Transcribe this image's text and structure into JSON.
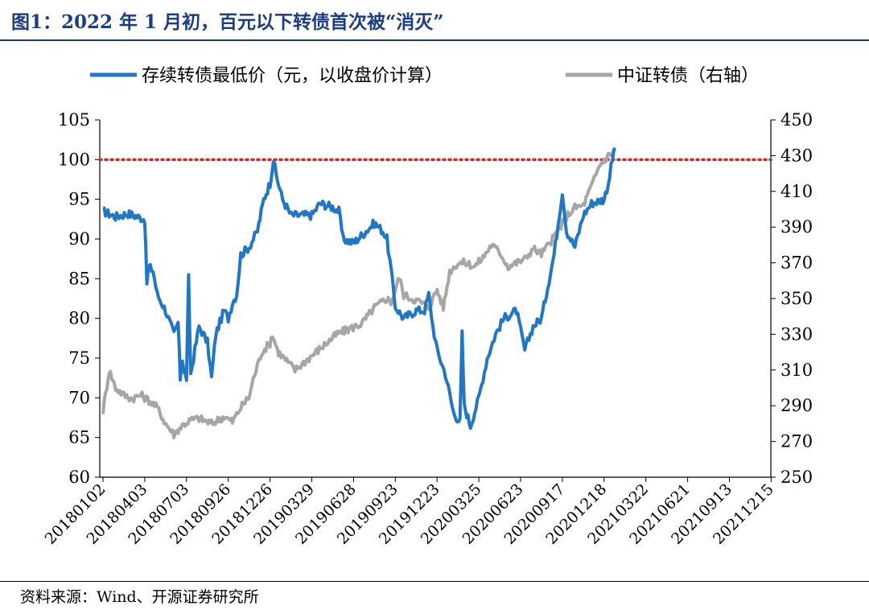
{
  "header": {
    "title": "图1：2022 年 1 月初，百元以下转债首次被“消灭”"
  },
  "footer": {
    "source": "资料来源：Wind、开源证券研究所"
  },
  "chart_data": {
    "type": "line",
    "title": "图1：2022 年 1 月初，百元以下转债首次被“消灭”",
    "legend": [
      "存续转债最低价（元，以收盘价计算）",
      "中证转债（右轴）"
    ],
    "legend_position": "top",
    "categories": [
      "20180102",
      "20180403",
      "20180703",
      "20180926",
      "20181226",
      "20190329",
      "20190628",
      "20190923",
      "20191223",
      "20200325",
      "20200623",
      "20200917",
      "20201218",
      "20210322",
      "20210621",
      "20210913",
      "20211215"
    ],
    "y_left": {
      "label": "",
      "lim": [
        60,
        105
      ],
      "ticks": [
        60,
        65,
        70,
        75,
        80,
        85,
        90,
        95,
        100,
        105
      ]
    },
    "y_right": {
      "label": "",
      "lim": [
        250,
        450
      ],
      "ticks": [
        250,
        270,
        290,
        310,
        330,
        350,
        370,
        390,
        410,
        430,
        450
      ]
    },
    "reference_line": {
      "axis": "left",
      "value": 100,
      "style": "dotted",
      "color": "#e8201a"
    },
    "colors": {
      "min_price": "#1f77c8",
      "index": "#a6a6a6",
      "reference": "#e8201a",
      "title": "#1a3c8c"
    },
    "series": [
      {
        "name": "存续转债最低价（元，以收盘价计算）",
        "axis": "left",
        "points": [
          [
            0,
            93.5
          ],
          [
            0.3,
            92.8
          ],
          [
            0.6,
            93.2
          ],
          [
            1.0,
            92.5
          ],
          [
            1.05,
            84.5
          ],
          [
            1.1,
            86.5
          ],
          [
            1.2,
            86
          ],
          [
            1.3,
            83
          ],
          [
            1.5,
            81
          ],
          [
            1.7,
            78
          ],
          [
            1.8,
            79.5
          ],
          [
            1.85,
            72.5
          ],
          [
            1.9,
            75
          ],
          [
            1.95,
            73
          ],
          [
            2.0,
            72.5
          ],
          [
            2.05,
            85
          ],
          [
            2.1,
            73
          ],
          [
            2.2,
            76
          ],
          [
            2.3,
            79
          ],
          [
            2.5,
            77
          ],
          [
            2.6,
            72.5
          ],
          [
            2.7,
            78
          ],
          [
            2.9,
            81
          ],
          [
            3.0,
            80
          ],
          [
            3.1,
            82
          ],
          [
            3.2,
            83
          ],
          [
            3.3,
            88
          ],
          [
            3.5,
            89
          ],
          [
            3.7,
            91
          ],
          [
            3.85,
            95
          ],
          [
            4.0,
            97
          ],
          [
            4.08,
            100
          ],
          [
            4.15,
            98
          ],
          [
            4.3,
            95
          ],
          [
            4.5,
            93
          ],
          [
            4.7,
            93
          ],
          [
            5.0,
            93
          ],
          [
            5.2,
            94.5
          ],
          [
            5.5,
            94
          ],
          [
            5.65,
            93.5
          ],
          [
            5.75,
            90
          ],
          [
            6.0,
            89.5
          ],
          [
            6.3,
            91
          ],
          [
            6.5,
            92
          ],
          [
            6.7,
            91
          ],
          [
            6.8,
            90
          ],
          [
            6.9,
            86
          ],
          [
            7.0,
            81.5
          ],
          [
            7.2,
            80
          ],
          [
            7.5,
            81
          ],
          [
            7.7,
            81
          ],
          [
            7.8,
            83
          ],
          [
            7.9,
            79
          ],
          [
            8.0,
            76
          ],
          [
            8.2,
            73
          ],
          [
            8.4,
            68
          ],
          [
            8.55,
            67
          ],
          [
            8.6,
            78
          ],
          [
            8.65,
            69
          ],
          [
            8.8,
            66.5
          ],
          [
            9.0,
            70
          ],
          [
            9.2,
            75
          ],
          [
            9.4,
            78
          ],
          [
            9.6,
            80
          ],
          [
            9.9,
            81
          ],
          [
            10.1,
            76
          ],
          [
            10.3,
            79
          ],
          [
            10.5,
            80
          ],
          [
            10.8,
            88
          ],
          [
            11.0,
            96
          ],
          [
            11.1,
            91
          ],
          [
            11.3,
            89
          ],
          [
            11.5,
            93
          ],
          [
            11.7,
            94.5
          ],
          [
            12.0,
            95
          ],
          [
            12.1,
            97
          ],
          [
            12.2,
            100
          ],
          [
            12.25,
            101.5
          ]
        ]
      },
      {
        "name": "中证转债（右轴）",
        "axis": "right",
        "points": [
          [
            0,
            287
          ],
          [
            0.15,
            310
          ],
          [
            0.3,
            300
          ],
          [
            0.5,
            296
          ],
          [
            0.7,
            294
          ],
          [
            0.9,
            296
          ],
          [
            1.1,
            293
          ],
          [
            1.3,
            289
          ],
          [
            1.5,
            280
          ],
          [
            1.7,
            274
          ],
          [
            1.9,
            279
          ],
          [
            2.1,
            282
          ],
          [
            2.3,
            283
          ],
          [
            2.6,
            280
          ],
          [
            2.9,
            284
          ],
          [
            3.1,
            281
          ],
          [
            3.3,
            289
          ],
          [
            3.5,
            295
          ],
          [
            3.6,
            305
          ],
          [
            3.8,
            320
          ],
          [
            4.0,
            325
          ],
          [
            4.05,
            330
          ],
          [
            4.2,
            320
          ],
          [
            4.4,
            315
          ],
          [
            4.6,
            310
          ],
          [
            4.8,
            314
          ],
          [
            5.0,
            318
          ],
          [
            5.3,
            324
          ],
          [
            5.6,
            330
          ],
          [
            5.9,
            333
          ],
          [
            6.2,
            336
          ],
          [
            6.5,
            345
          ],
          [
            6.8,
            350
          ],
          [
            6.9,
            348
          ],
          [
            7.1,
            362
          ],
          [
            7.2,
            352
          ],
          [
            7.4,
            350
          ],
          [
            7.6,
            348
          ],
          [
            7.8,
            345
          ],
          [
            8.0,
            355
          ],
          [
            8.15,
            345
          ],
          [
            8.3,
            365
          ],
          [
            8.5,
            370
          ],
          [
            8.7,
            370
          ],
          [
            8.9,
            368
          ],
          [
            9.1,
            373
          ],
          [
            9.3,
            380
          ],
          [
            9.5,
            376
          ],
          [
            9.7,
            368
          ],
          [
            9.9,
            370
          ],
          [
            10.1,
            372
          ],
          [
            10.3,
            378
          ],
          [
            10.5,
            375
          ],
          [
            10.7,
            381
          ],
          [
            10.9,
            388
          ],
          [
            11.1,
            396
          ],
          [
            11.3,
            401
          ],
          [
            11.5,
            402
          ],
          [
            11.7,
            413
          ],
          [
            11.9,
            425
          ],
          [
            12.1,
            430
          ],
          [
            12.25,
            432
          ]
        ]
      }
    ]
  }
}
